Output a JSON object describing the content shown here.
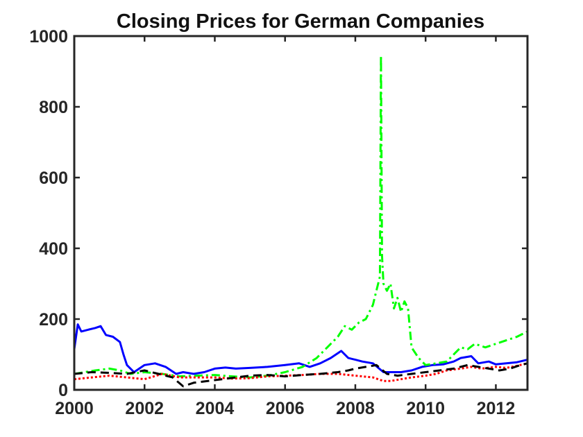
{
  "chart_data": {
    "type": "line",
    "title": "Closing Prices for German Companies",
    "xlabel": "",
    "ylabel": "",
    "xlim": [
      2000,
      2012.9
    ],
    "ylim": [
      0,
      1000
    ],
    "xticks": [
      "2000",
      "2002",
      "2004",
      "2006",
      "2008",
      "2010",
      "2012"
    ],
    "yticks": [
      "0",
      "200",
      "400",
      "600",
      "800",
      "1000"
    ],
    "grid": false,
    "series": [
      {
        "color": "#0000ff",
        "style": "solid",
        "x": [
          2000,
          2000.1,
          2000.2,
          2000.4,
          2000.6,
          2000.75,
          2000.9,
          2001.1,
          2001.3,
          2001.4,
          2001.5,
          2001.7,
          2002.0,
          2002.3,
          2002.6,
          2002.9,
          2003.1,
          2003.4,
          2003.7,
          2004.0,
          2004.3,
          2004.6,
          2005.0,
          2005.5,
          2006.0,
          2006.4,
          2006.7,
          2007.0,
          2007.3,
          2007.6,
          2007.8,
          2008.0,
          2008.2,
          2008.5,
          2008.8,
          2009.0,
          2009.3,
          2009.6,
          2009.9,
          2010.2,
          2010.5,
          2010.8,
          2011.0,
          2011.3,
          2011.5,
          2011.8,
          2012.0,
          2012.3,
          2012.6,
          2012.9
        ],
        "values": [
          115,
          185,
          165,
          170,
          175,
          180,
          155,
          150,
          135,
          100,
          70,
          50,
          70,
          75,
          65,
          45,
          50,
          45,
          50,
          60,
          63,
          60,
          62,
          65,
          70,
          75,
          65,
          75,
          90,
          110,
          90,
          85,
          80,
          75,
          50,
          50,
          50,
          55,
          65,
          70,
          72,
          80,
          90,
          95,
          75,
          80,
          72,
          75,
          78,
          85
        ]
      },
      {
        "color": "#00ff00",
        "style": "dashdot",
        "x": [
          2000,
          2000.3,
          2000.6,
          2001.0,
          2001.3,
          2001.6,
          2002.0,
          2002.5,
          2003.0,
          2003.5,
          2004.0,
          2004.5,
          2005.0,
          2005.5,
          2006.0,
          2006.5,
          2006.9,
          2007.2,
          2007.5,
          2007.7,
          2007.9,
          2008.1,
          2008.3,
          2008.5,
          2008.6,
          2008.7,
          2008.73,
          2008.76,
          2008.8,
          2008.9,
          2009.0,
          2009.1,
          2009.2,
          2009.3,
          2009.4,
          2009.5,
          2009.6,
          2009.8,
          2010.0,
          2010.3,
          2010.6,
          2010.8,
          2011.0,
          2011.2,
          2011.4,
          2011.7,
          2012.0,
          2012.3,
          2012.6,
          2012.9
        ],
        "values": [
          45,
          50,
          55,
          60,
          55,
          45,
          50,
          45,
          38,
          40,
          42,
          38,
          35,
          40,
          50,
          65,
          90,
          120,
          150,
          180,
          170,
          190,
          200,
          240,
          280,
          320,
          945,
          380,
          300,
          280,
          300,
          230,
          260,
          220,
          250,
          230,
          120,
          90,
          70,
          75,
          80,
          100,
          120,
          115,
          130,
          120,
          130,
          140,
          150,
          165
        ]
      },
      {
        "color": "#ff0000",
        "style": "dotted",
        "x": [
          2000,
          2000.5,
          2001.0,
          2001.5,
          2002.0,
          2002.5,
          2003.0,
          2003.5,
          2004.0,
          2004.5,
          2005.0,
          2005.5,
          2006.0,
          2006.5,
          2007.0,
          2007.5,
          2008.0,
          2008.5,
          2008.8,
          2009.0,
          2009.3,
          2009.6,
          2010.0,
          2010.3,
          2010.6,
          2011.0,
          2011.3,
          2011.6,
          2012.0,
          2012.3,
          2012.6,
          2012.9
        ],
        "values": [
          30,
          35,
          40,
          35,
          30,
          45,
          35,
          35,
          35,
          32,
          33,
          38,
          40,
          42,
          45,
          45,
          40,
          35,
          25,
          25,
          30,
          35,
          40,
          45,
          55,
          60,
          65,
          60,
          65,
          62,
          68,
          75
        ]
      },
      {
        "color": "#000000",
        "style": "dashed",
        "x": [
          2000,
          2000.5,
          2001.0,
          2001.5,
          2002.0,
          2002.4,
          2002.8,
          2003.1,
          2003.4,
          2003.8,
          2004.2,
          2004.6,
          2005.0,
          2005.5,
          2006.0,
          2006.5,
          2007.0,
          2007.5,
          2007.8,
          2008.0,
          2008.3,
          2008.6,
          2008.9,
          2009.2,
          2009.6,
          2010.0,
          2010.4,
          2010.8,
          2011.2,
          2011.5,
          2011.8,
          2012.1,
          2012.4,
          2012.7,
          2012.9
        ],
        "values": [
          45,
          50,
          48,
          45,
          55,
          45,
          35,
          10,
          20,
          25,
          30,
          35,
          40,
          42,
          38,
          42,
          45,
          50,
          55,
          60,
          65,
          70,
          45,
          40,
          45,
          50,
          55,
          60,
          70,
          65,
          60,
          55,
          60,
          70,
          75
        ]
      }
    ]
  }
}
